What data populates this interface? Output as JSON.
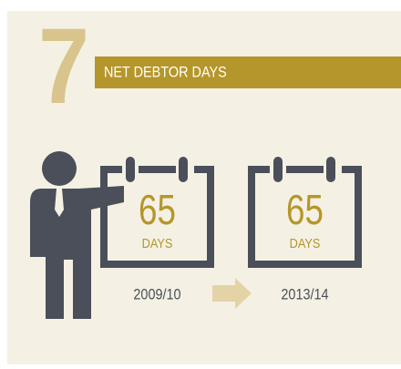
{
  "number": "7",
  "title": "NET DEBTOR DAYS",
  "panels": [
    {
      "value": 65,
      "unit": "DAYS",
      "period": "2009/10"
    },
    {
      "value": 65,
      "unit": "DAYS",
      "period": "2013/14"
    }
  ]
}
